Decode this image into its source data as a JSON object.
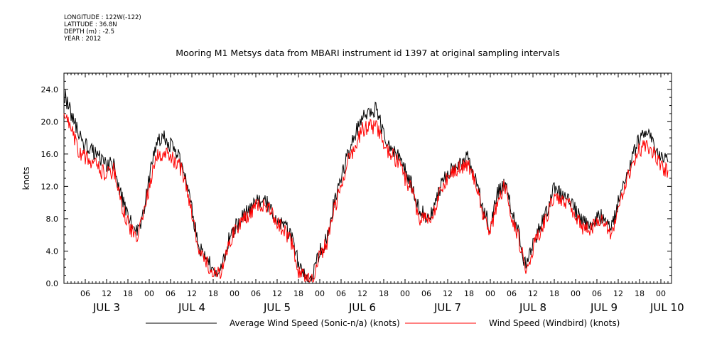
{
  "meta": {
    "longitude": "LONGITUDE : 122W(-122)",
    "latitude": "LATITUDE : 36.8N",
    "depth": "DEPTH (m) : -2.5",
    "year": "YEAR : 2012"
  },
  "chart_data": {
    "type": "line",
    "title": "Mooring M1 Metsys data from MBARI instrument id 1397 at original sampling intervals",
    "ylabel": "knots",
    "xlabel": "",
    "ylim": [
      0,
      26
    ],
    "yticks": [
      "0.0",
      "4.0",
      "8.0",
      "12.0",
      "16.0",
      "20.0",
      "24.0"
    ],
    "xlim_hours": [
      0,
      171
    ],
    "hour_tick_labels": [
      "06",
      "12",
      "18",
      "00",
      "06",
      "12",
      "18",
      "00",
      "06",
      "12",
      "18",
      "00",
      "06",
      "12",
      "18",
      "00",
      "06",
      "12",
      "18",
      "00",
      "06",
      "12",
      "18",
      "00",
      "06",
      "12",
      "18",
      "00"
    ],
    "day_labels": [
      "JUL 3",
      "JUL 4",
      "JUL 5",
      "JUL 6",
      "JUL 7",
      "JUL 8",
      "JUL 9",
      "JUL 10"
    ],
    "legend_placement": "bottom",
    "grid": false,
    "series": [
      {
        "name": "Average Wind Speed (Sonic-n/a) (knots)",
        "color": "#000000",
        "x": [
          0,
          2,
          4,
          6,
          8,
          10,
          12,
          14,
          16,
          18,
          20,
          22,
          24,
          26,
          28,
          30,
          32,
          34,
          36,
          38,
          40,
          42,
          44,
          46,
          48,
          50,
          52,
          54,
          56,
          58,
          60,
          62,
          64,
          66,
          68,
          70,
          72,
          74,
          76,
          78,
          80,
          82,
          84,
          86,
          88,
          90,
          92,
          94,
          96,
          98,
          100,
          102,
          104,
          106,
          108,
          110,
          112,
          114,
          116,
          118,
          120,
          122,
          124,
          126,
          128,
          130,
          132,
          134,
          136,
          138,
          140,
          142,
          144,
          146,
          148,
          150,
          152,
          154,
          156,
          158,
          160,
          162,
          164,
          166,
          168,
          170
        ],
        "y": [
          23.5,
          21,
          18.5,
          17,
          16.5,
          15.5,
          14.5,
          14.8,
          11,
          8.5,
          6,
          8,
          13,
          17.5,
          18.5,
          17,
          16,
          13.5,
          9,
          4.5,
          3,
          2,
          1.2,
          5,
          6.8,
          8,
          9,
          10,
          10.3,
          9.5,
          8,
          7,
          6,
          2.5,
          1,
          0.8,
          4,
          5.5,
          10,
          13,
          16,
          18.5,
          21,
          21.3,
          21.5,
          18.5,
          17,
          16,
          14,
          12,
          9,
          8.5,
          9,
          12,
          13.5,
          14.5,
          15,
          15.5,
          13,
          9,
          7,
          11,
          12.5,
          9,
          6,
          2,
          5,
          7,
          9,
          11.8,
          11,
          10.5,
          9,
          7.5,
          7,
          8,
          8.5,
          6.5,
          10,
          13,
          15.5,
          18,
          19,
          17,
          15.5,
          15
        ]
      },
      {
        "name": "Wind Speed (Windbird) (knots)",
        "color": "#ff0000",
        "x": [
          0,
          2,
          4,
          6,
          8,
          10,
          12,
          14,
          16,
          18,
          20,
          22,
          24,
          26,
          28,
          30,
          32,
          34,
          36,
          38,
          40,
          42,
          44,
          46,
          48,
          50,
          52,
          54,
          56,
          58,
          60,
          62,
          64,
          66,
          68,
          70,
          72,
          74,
          76,
          78,
          80,
          82,
          84,
          86,
          88,
          90,
          92,
          94,
          96,
          98,
          100,
          102,
          104,
          106,
          108,
          110,
          112,
          114,
          116,
          118,
          120,
          122,
          124,
          126,
          128,
          130,
          132,
          134,
          136,
          138,
          140,
          142,
          144,
          146,
          148,
          150,
          152,
          154,
          156,
          158,
          160,
          162,
          164,
          166,
          168,
          170
        ],
        "y": [
          21,
          19,
          16.5,
          15.5,
          15,
          14,
          13.5,
          14,
          10,
          7.5,
          5.5,
          7.5,
          12,
          15.5,
          16,
          15.5,
          15,
          13,
          8.5,
          4,
          2.5,
          1.5,
          1,
          4.5,
          6.5,
          7.5,
          8.5,
          9.5,
          9.5,
          9,
          7.5,
          6.5,
          5,
          1.5,
          0.5,
          0.5,
          3.5,
          5,
          9,
          12,
          15,
          17,
          19,
          19.3,
          19.5,
          17,
          16,
          15,
          13,
          11.5,
          8,
          8,
          8.5,
          11.5,
          13,
          14,
          14.5,
          14.5,
          12.5,
          8.5,
          6.5,
          10,
          12,
          8.5,
          5.5,
          1.5,
          4.5,
          6.5,
          8.5,
          11,
          10.5,
          10,
          8.5,
          7,
          6.5,
          7.5,
          8,
          6,
          9.5,
          12,
          15,
          16.5,
          17,
          16,
          14.5,
          14
        ]
      }
    ]
  }
}
